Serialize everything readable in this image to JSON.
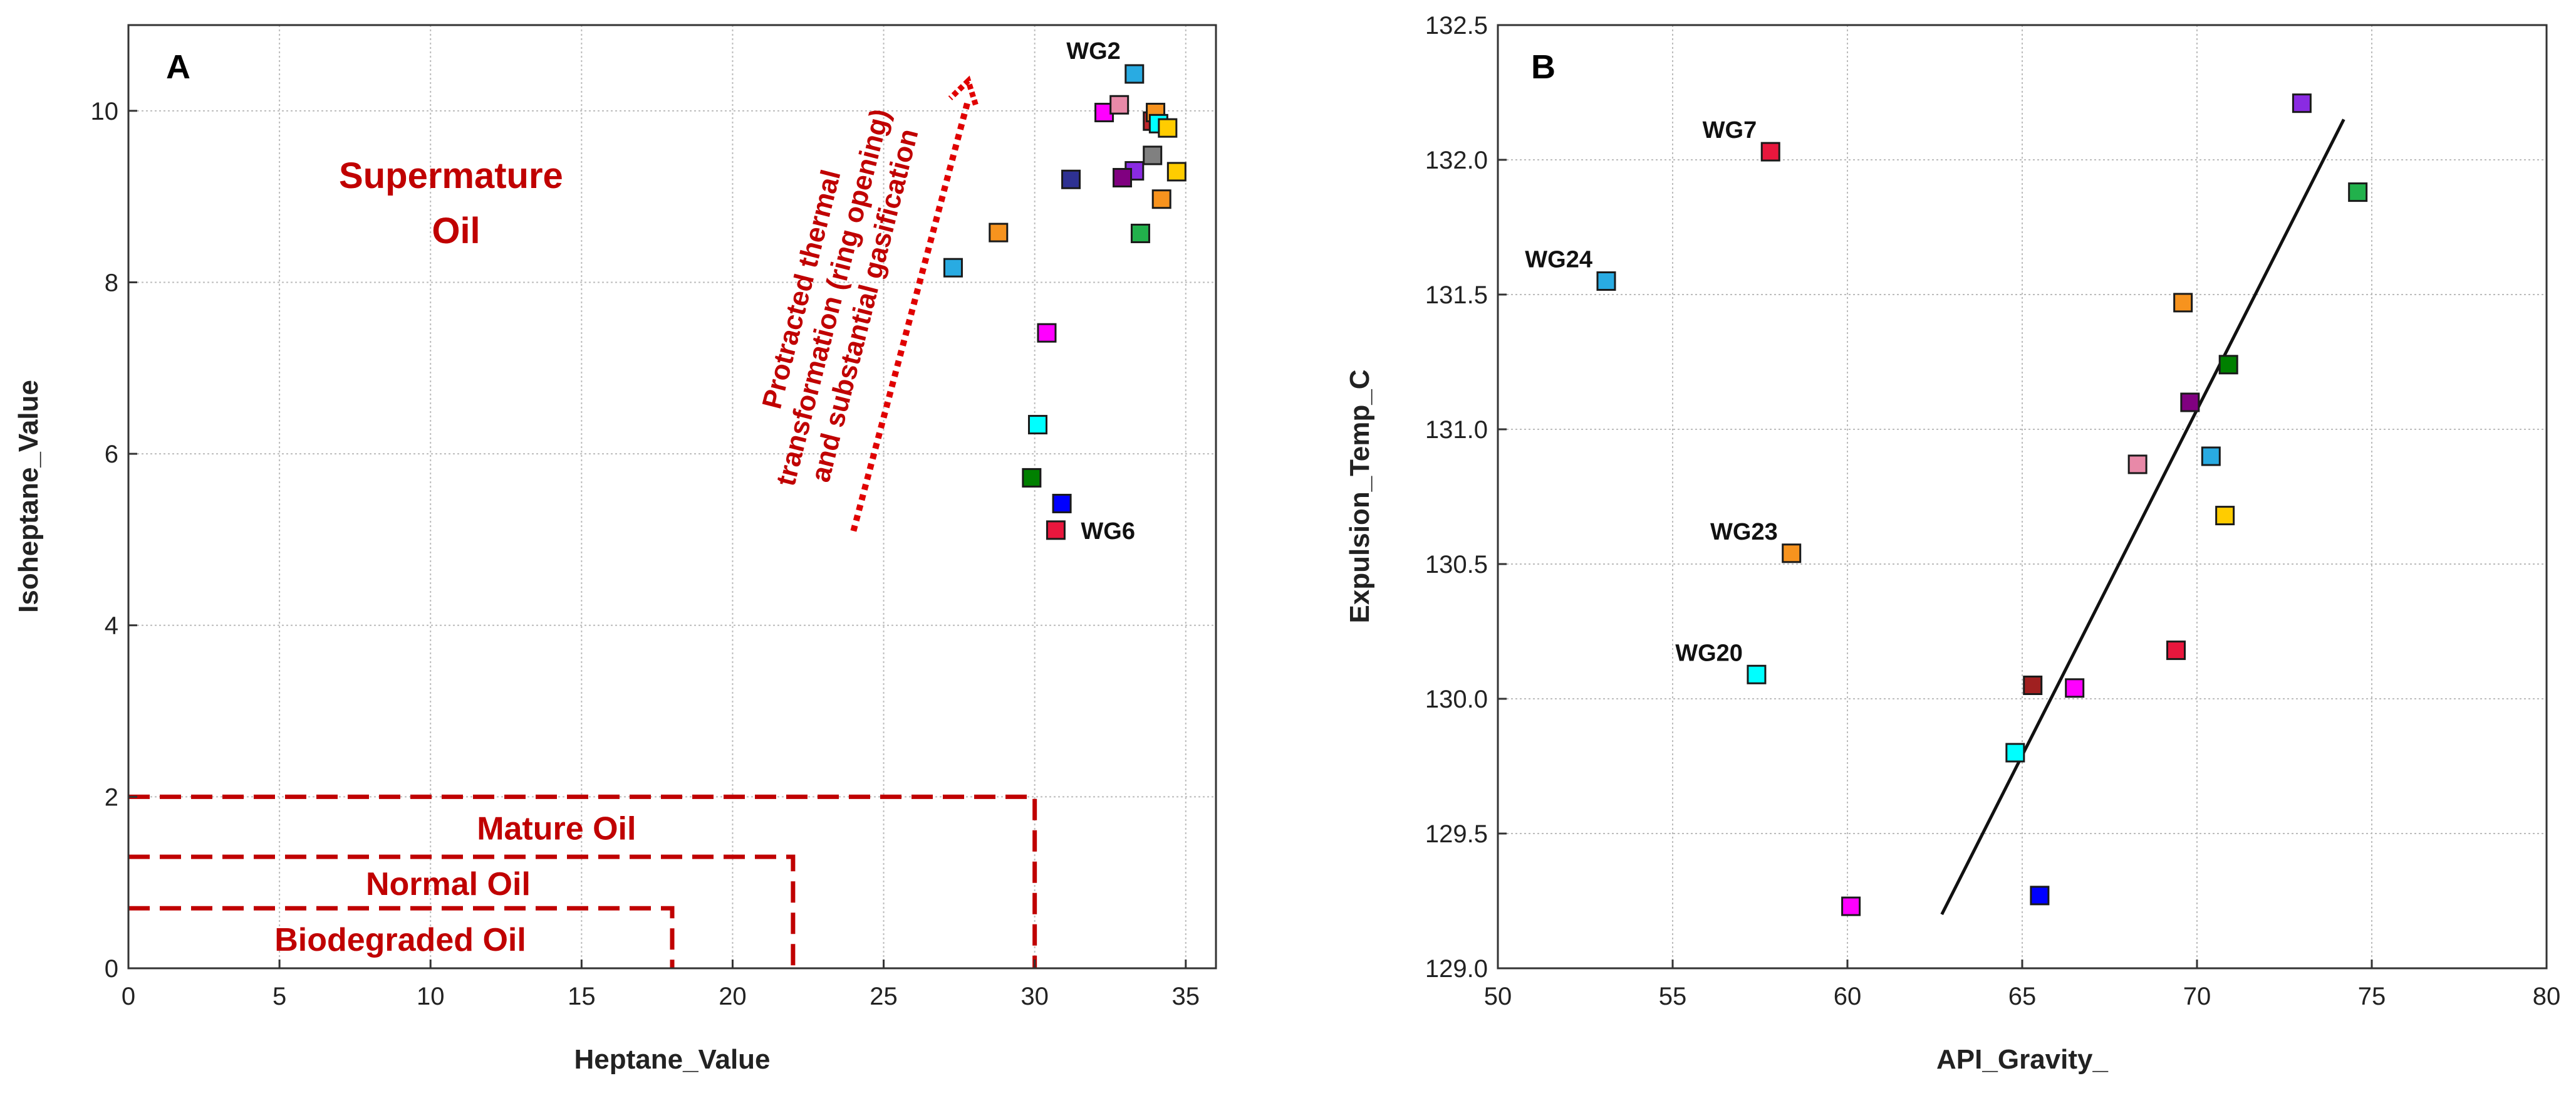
{
  "chart_data": [
    {
      "type": "scatter",
      "panel_label": "A",
      "xlabel": "Heptane_Value",
      "ylabel": "Isoheptane_Value",
      "xlim": [
        0,
        36
      ],
      "ylim": [
        0,
        11
      ],
      "xticks": [
        0,
        5,
        10,
        15,
        20,
        25,
        30,
        35
      ],
      "yticks": [
        0,
        2,
        4,
        6,
        8,
        10
      ],
      "grid": true,
      "points": [
        {
          "x": 27.3,
          "y": 8.17,
          "color": "#29abe2"
        },
        {
          "x": 28.8,
          "y": 8.58,
          "color": "#f7931e"
        },
        {
          "x": 31.2,
          "y": 9.2,
          "color": "#2e3192"
        },
        {
          "x": 32.3,
          "y": 9.98,
          "color": "#ff00ff"
        },
        {
          "x": 32.8,
          "y": 10.07,
          "color": "#e889a8"
        },
        {
          "x": 33.3,
          "y": 10.43,
          "color": "#29abe2",
          "label": "WG2"
        },
        {
          "x": 33.9,
          "y": 9.88,
          "color": "#c1272d"
        },
        {
          "x": 34.0,
          "y": 9.98,
          "color": "#f7931e"
        },
        {
          "x": 34.1,
          "y": 9.85,
          "color": "#00ffff"
        },
        {
          "x": 34.4,
          "y": 9.8,
          "color": "#ffcc00"
        },
        {
          "x": 33.9,
          "y": 9.48,
          "color": "#808080"
        },
        {
          "x": 33.3,
          "y": 9.3,
          "color": "#8a2be2"
        },
        {
          "x": 32.9,
          "y": 9.22,
          "color": "#800080"
        },
        {
          "x": 34.7,
          "y": 9.29,
          "color": "#ffcc00"
        },
        {
          "x": 34.2,
          "y": 8.97,
          "color": "#f7931e"
        },
        {
          "x": 33.5,
          "y": 8.57,
          "color": "#22b14c"
        },
        {
          "x": 30.4,
          "y": 7.41,
          "color": "#ff00ff"
        },
        {
          "x": 30.1,
          "y": 6.34,
          "color": "#00ffff"
        },
        {
          "x": 29.9,
          "y": 5.72,
          "color": "#008000"
        },
        {
          "x": 30.9,
          "y": 5.42,
          "color": "#0000ff"
        },
        {
          "x": 30.7,
          "y": 5.11,
          "color": "#e8173d",
          "label": "WG6"
        }
      ],
      "regions": [
        {
          "label": "Mature Oil",
          "x_max": 30,
          "y_max": 2.0
        },
        {
          "label": "Normal Oil",
          "x_max": 22,
          "y_max": 1.3
        },
        {
          "label": "Biodegraded Oil",
          "x_max": 18,
          "y_max": 0.7
        }
      ],
      "zone_label": [
        "Supermature",
        "Oil"
      ],
      "arrow": {
        "from": [
          24,
          5.1
        ],
        "to": [
          27.8,
          10.35
        ],
        "label_lines": [
          "Protracted thermal",
          "transformation (ring opening)",
          "and substantial gasification"
        ]
      }
    },
    {
      "type": "scatter",
      "panel_label": "B",
      "xlabel": "API_Gravity_",
      "ylabel": "Expulsion_Temp_C",
      "xlim": [
        50,
        80
      ],
      "ylim": [
        129.0,
        132.5
      ],
      "xticks": [
        50,
        55,
        60,
        65,
        70,
        75,
        80
      ],
      "yticks": [
        "129.0",
        "129.5",
        "130.0",
        "130.5",
        "131.0",
        "131.5",
        "132.0",
        "132.5"
      ],
      "grid": true,
      "points": [
        {
          "x": 53.1,
          "y": 131.55,
          "color": "#29abe2",
          "label": "WG24"
        },
        {
          "x": 57.8,
          "y": 132.03,
          "color": "#e8173d",
          "label": "WG7"
        },
        {
          "x": 58.4,
          "y": 130.54,
          "color": "#f7931e",
          "label": "WG23"
        },
        {
          "x": 57.4,
          "y": 130.09,
          "color": "#00ffff",
          "label": "WG20"
        },
        {
          "x": 60.1,
          "y": 129.23,
          "color": "#ff00ff"
        },
        {
          "x": 64.8,
          "y": 129.8,
          "color": "#00ffff"
        },
        {
          "x": 65.3,
          "y": 130.05,
          "color": "#a02020"
        },
        {
          "x": 65.5,
          "y": 129.27,
          "color": "#0000ff"
        },
        {
          "x": 66.5,
          "y": 130.04,
          "color": "#ff00ff"
        },
        {
          "x": 68.3,
          "y": 130.87,
          "color": "#e889a8"
        },
        {
          "x": 69.4,
          "y": 130.18,
          "color": "#e8173d"
        },
        {
          "x": 69.6,
          "y": 131.47,
          "color": "#f7931e"
        },
        {
          "x": 69.8,
          "y": 131.1,
          "color": "#800080"
        },
        {
          "x": 70.4,
          "y": 130.9,
          "color": "#29abe2"
        },
        {
          "x": 70.8,
          "y": 130.68,
          "color": "#ffcc00"
        },
        {
          "x": 70.9,
          "y": 131.24,
          "color": "#008000"
        },
        {
          "x": 73.0,
          "y": 132.21,
          "color": "#8a2be2"
        },
        {
          "x": 74.6,
          "y": 131.88,
          "color": "#22b14c"
        }
      ],
      "trend_line": {
        "x": [
          62.7,
          74.2
        ],
        "y": [
          129.2,
          132.15
        ]
      }
    }
  ]
}
